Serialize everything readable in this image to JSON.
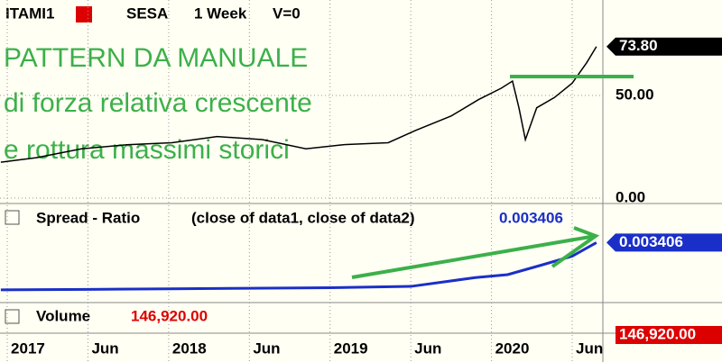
{
  "header": {
    "symbol": "ITAMI1",
    "symbol2": "SESA",
    "interval": "1 Week",
    "volume_setting": "V=0"
  },
  "annotations": [
    "PATTERN DA MANUALE",
    "di forza relativa crescente",
    "e rottura massimi storici"
  ],
  "chart_data": [
    {
      "type": "line",
      "name": "price",
      "color": "#000000",
      "grid": true,
      "x": [
        2016.96,
        2017.18,
        2017.46,
        2017.74,
        2018.02,
        2018.3,
        2018.58,
        2018.85,
        2019.08,
        2019.36,
        2019.53,
        2019.75,
        2019.92,
        2020.06,
        2020.13,
        2020.17,
        2020.21,
        2020.28,
        2020.39,
        2020.5,
        2020.59,
        2020.65
      ],
      "values": [
        17.5,
        19.7,
        24,
        26,
        27,
        30,
        28.5,
        24,
        26,
        27,
        33,
        40,
        48,
        53.5,
        57,
        44,
        28.5,
        44,
        49,
        56,
        66,
        73.8
      ],
      "xlim": [
        2016.955,
        2020.69
      ],
      "xticks": [
        {
          "value": 2017,
          "label": "2017"
        },
        {
          "value": 2017.5,
          "label": "Jun"
        },
        {
          "value": 2018,
          "label": "2018"
        },
        {
          "value": 2018.5,
          "label": "Jun"
        },
        {
          "value": 2019,
          "label": "2019"
        },
        {
          "value": 2019.5,
          "label": "Jun"
        },
        {
          "value": 2020,
          "label": "2020"
        },
        {
          "value": 2020.5,
          "label": "Jun"
        }
      ],
      "ylim": [
        0,
        96.5
      ],
      "yticks": [
        {
          "value": 50,
          "label": "50.00"
        },
        {
          "value": 0,
          "label": "0.00"
        }
      ],
      "last_value": {
        "value": 73.8,
        "label": "73.80"
      }
    },
    {
      "type": "line",
      "title": "Spread - Ratio",
      "subtitle": "(close of data1,  close of data2)",
      "color": "#1a2fc8",
      "x": [
        2016.96,
        2017.5,
        2018.0,
        2018.5,
        2019.0,
        2019.5,
        2019.9,
        2020.1,
        2020.3,
        2020.5,
        2020.65
      ],
      "values": [
        0.00164,
        0.00166,
        0.00168,
        0.0017,
        0.00172,
        0.00177,
        0.0021,
        0.00221,
        0.00255,
        0.0029,
        0.003406
      ],
      "xlim": [
        2016.955,
        2020.69
      ],
      "ylim": [
        0.0012,
        0.0048
      ],
      "last_value": 0.003406
    },
    {
      "type": "volume",
      "title": "Volume",
      "last_value": {
        "value": 146920,
        "label": "146,920.00"
      }
    }
  ]
}
